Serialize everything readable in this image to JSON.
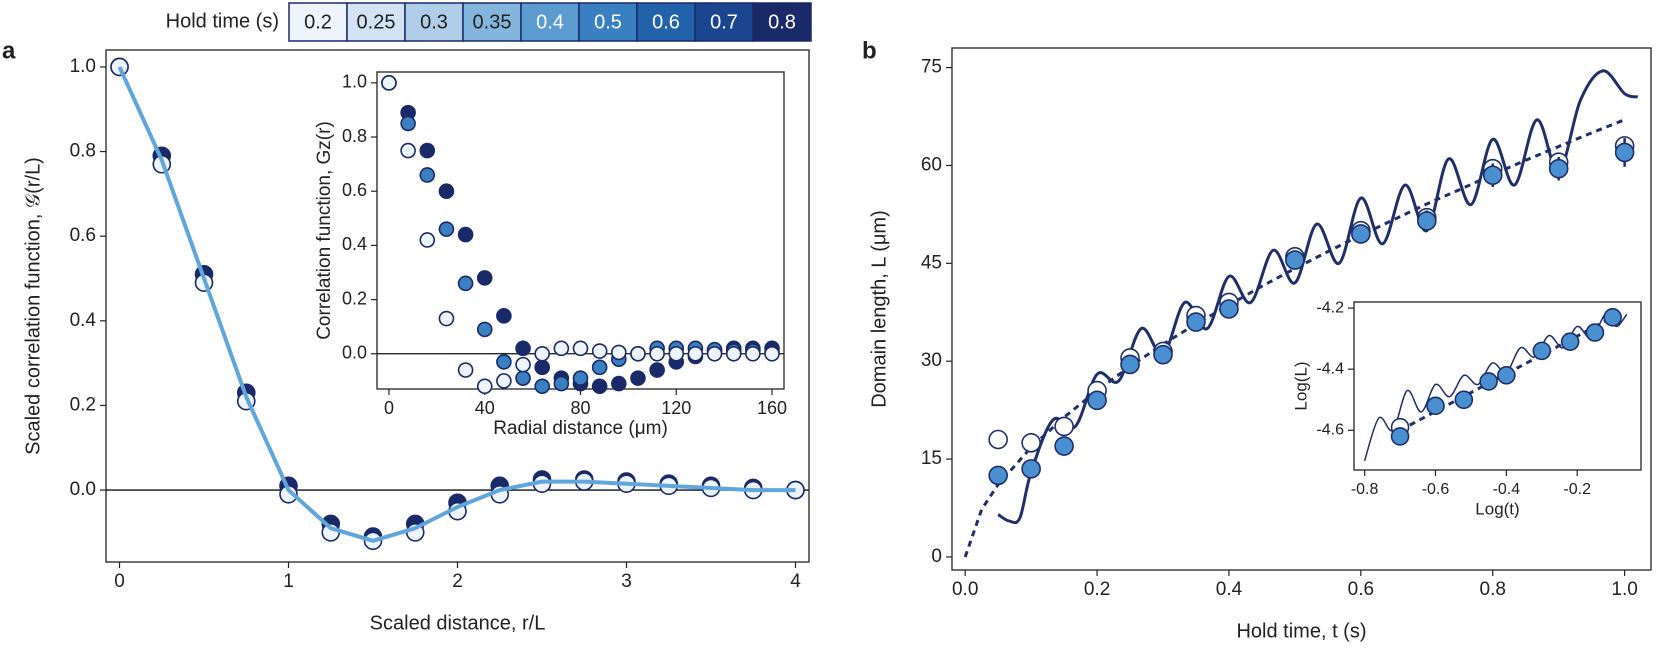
{
  "chart_data": [
    {
      "type": "scatter",
      "panel": "a",
      "xlabel": "Scaled distance, r/L",
      "ylabel": "Scaled correlation function, 𝒢(r/L)",
      "xlim": [
        -0.08,
        4.08
      ],
      "ylim": [
        -0.17,
        1.04
      ],
      "xticks": [
        0,
        1,
        2,
        3,
        4
      ],
      "yticks": [
        {
          "value": 0,
          "label": "0.0"
        },
        {
          "value": 0.2,
          "label": "0.2"
        },
        {
          "value": 0.4,
          "label": "0.4"
        },
        {
          "value": 0.6,
          "label": "0.6"
        },
        {
          "value": 0.8,
          "label": "0.8"
        },
        {
          "value": 1,
          "label": "1.0"
        }
      ],
      "zero_line": true,
      "colorbar": {
        "title": "Hold time (s)",
        "labels": [
          "0.2",
          "0.25",
          "0.3",
          "0.35",
          "0.4",
          "0.5",
          "0.6",
          "0.7",
          "0.8"
        ],
        "colors": [
          "#eef4fb",
          "#d3e3f3",
          "#b0cde8",
          "#84b5dc",
          "#5b9bd0",
          "#3a7fc2",
          "#2262ab",
          "#1c4590",
          "#1a2a68"
        ]
      },
      "x": [
        0,
        0.25,
        0.5,
        0.75,
        1.0,
        1.25,
        1.5,
        1.75,
        2.0,
        2.25,
        2.5,
        2.75,
        3.0,
        3.25,
        3.5,
        3.75,
        4.0
      ],
      "series": [
        {
          "color": "#1a2a68",
          "kind": "markers",
          "values": [
            1.0,
            0.79,
            0.51,
            0.23,
            0.01,
            -0.08,
            -0.11,
            -0.08,
            -0.03,
            0.01,
            0.025,
            0.025,
            0.02,
            0.015,
            0.01,
            0.005,
            0.0
          ]
        },
        {
          "color": "#eef4fb",
          "kind": "markers",
          "values": [
            1.0,
            0.77,
            0.49,
            0.21,
            -0.01,
            -0.1,
            -0.12,
            -0.1,
            -0.05,
            -0.01,
            0.015,
            0.02,
            0.015,
            0.01,
            0.005,
            0.0,
            0.0
          ]
        },
        {
          "color": "#5fa6dc",
          "kind": "line",
          "values": [
            1.0,
            0.78,
            0.5,
            0.22,
            0.0,
            -0.09,
            -0.12,
            -0.09,
            -0.04,
            0.0,
            0.02,
            0.02,
            0.015,
            0.01,
            0.005,
            0.0,
            0.0
          ]
        }
      ]
    },
    {
      "type": "scatter",
      "xlabel": "Radial distance (μm)",
      "ylabel": "Correlation function, Gz(r)",
      "xlim": [
        -5,
        165
      ],
      "ylim": [
        -0.13,
        1.04
      ],
      "xticks": [
        0,
        40,
        80,
        120,
        160
      ],
      "yticks": [
        {
          "value": 0,
          "label": "0.0"
        },
        {
          "value": 0.2,
          "label": "0.2"
        },
        {
          "value": 0.4,
          "label": "0.4"
        },
        {
          "value": 0.6,
          "label": "0.6"
        },
        {
          "value": 0.8,
          "label": "0.8"
        },
        {
          "value": 1,
          "label": "1.0"
        }
      ],
      "zero_line": true,
      "x": [
        0,
        8,
        16,
        24,
        32,
        40,
        48,
        56,
        64,
        72,
        80,
        88,
        96,
        104,
        112,
        120,
        128,
        136,
        144,
        152,
        160
      ],
      "series": [
        {
          "color": "#1a2a68",
          "kind": "markers",
          "values": [
            1,
            0.89,
            0.75,
            0.6,
            0.44,
            0.28,
            0.14,
            0.02,
            -0.05,
            -0.09,
            -0.11,
            -0.12,
            -0.11,
            -0.09,
            -0.06,
            -0.03,
            -0.01,
            0.01,
            0.02,
            0.02,
            0.02
          ]
        },
        {
          "color": "#3a7fc2",
          "kind": "markers",
          "values": [
            1,
            0.85,
            0.66,
            0.46,
            0.26,
            0.09,
            -0.03,
            -0.09,
            -0.12,
            -0.11,
            -0.09,
            -0.05,
            -0.02,
            0,
            0.02,
            0.02,
            0.02,
            0.015,
            0.01,
            0.01,
            0.005
          ]
        },
        {
          "color": "#eef4fb",
          "kind": "markers",
          "values": [
            1.0,
            0.75,
            0.42,
            0.13,
            -0.06,
            -0.12,
            -0.1,
            -0.04,
            0.0,
            0.02,
            0.02,
            0.01,
            0.005,
            0,
            0,
            0,
            0,
            0,
            0,
            0,
            0
          ]
        }
      ]
    },
    {
      "type": "line",
      "panel": "b",
      "xlabel": "Hold time, t (s)",
      "ylabel": "Domain length, L (μm)",
      "xlim": [
        -0.02,
        1.04
      ],
      "ylim": [
        -2,
        78
      ],
      "xticks": [
        {
          "value": 0,
          "label": "0.0"
        },
        {
          "value": 0.2,
          "label": "0.2"
        },
        {
          "value": 0.4,
          "label": "0.4"
        },
        {
          "value": 0.6,
          "label": "0.6"
        },
        {
          "value": 0.8,
          "label": "0.8"
        },
        {
          "value": 1,
          "label": "1.0"
        }
      ],
      "yticks": [
        0,
        15,
        30,
        45,
        60,
        75
      ],
      "series": [
        {
          "color": "#1f2f6a",
          "kind": "line",
          "smooth": true,
          "x": [
            0.05,
            0.067,
            0.083,
            0.1,
            0.133,
            0.167,
            0.2,
            0.233,
            0.267,
            0.3,
            0.333,
            0.367,
            0.4,
            0.433,
            0.467,
            0.5,
            0.533,
            0.567,
            0.6,
            0.633,
            0.667,
            0.7,
            0.733,
            0.767,
            0.8,
            0.833,
            0.867,
            0.9,
            0.933,
            0.967,
            1.0,
            1.02
          ],
          "values": [
            6.5,
            5.5,
            6,
            13,
            21,
            20,
            28,
            27,
            35,
            31,
            39,
            35,
            43,
            39,
            47,
            42,
            51,
            45,
            55,
            48,
            57,
            50,
            61,
            54,
            64,
            57,
            67,
            59,
            70,
            74.5,
            71,
            70.5
          ]
        },
        {
          "color": "#1f2f6a",
          "kind": "line",
          "dash": true,
          "x": [
            0,
            0.025,
            0.05,
            0.1,
            0.15,
            0.2,
            0.25,
            0.3,
            0.35,
            0.4,
            0.45,
            0.5,
            0.55,
            0.6,
            0.65,
            0.7,
            0.75,
            0.8,
            0.85,
            0.9,
            0.95,
            1.0
          ],
          "values": [
            0,
            7.3,
            11.1,
            16.8,
            21.4,
            25.5,
            29.2,
            32.6,
            35.7,
            38.6,
            41.5,
            44.2,
            46.8,
            49.3,
            51.7,
            54.1,
            56.3,
            58.6,
            60.8,
            62.9,
            65.0,
            67.0
          ]
        },
        {
          "color": "#ffffff",
          "edge": "#1f2f6a",
          "kind": "markers",
          "x": [
            0.05,
            0.1,
            0.15,
            0.2,
            0.25,
            0.3,
            0.35,
            0.4,
            0.5,
            0.6,
            0.7,
            0.8,
            0.9,
            1.0
          ],
          "values": [
            18,
            17.5,
            20,
            25.5,
            30.5,
            31.5,
            37,
            39,
            46,
            50,
            52,
            59.5,
            60.5,
            63
          ]
        },
        {
          "color": "#4a90d0",
          "edge": "#1f2f6a",
          "kind": "markers",
          "x": [
            0.05,
            0.1,
            0.15,
            0.2,
            0.25,
            0.3,
            0.35,
            0.4,
            0.5,
            0.6,
            0.7,
            0.8,
            0.9,
            1.0
          ],
          "values": [
            12.5,
            13.5,
            17,
            24,
            29.5,
            31,
            36,
            38,
            45.5,
            49.5,
            51.5,
            58.5,
            59.5,
            62
          ],
          "errors": [
            0.8,
            0.8,
            0.8,
            0.9,
            0.9,
            1,
            1,
            1.2,
            1.3,
            1.3,
            1.6,
            1.8,
            1.8,
            2.2
          ]
        }
      ]
    },
    {
      "type": "line",
      "xlabel": "Log(t)",
      "ylabel": "Log(L)",
      "xlim": [
        -0.83,
        -0.02
      ],
      "ylim": [
        -4.73,
        -4.18
      ],
      "xticks": [
        -0.8,
        -0.6,
        -0.4,
        -0.2
      ],
      "yticks": [
        -4.6,
        -4.4,
        -4.2
      ],
      "series": [
        {
          "color": "#1f2f6a",
          "kind": "line",
          "smooth": true,
          "thin": true,
          "x": [
            -0.8,
            -0.76,
            -0.72,
            -0.68,
            -0.64,
            -0.6,
            -0.56,
            -0.52,
            -0.48,
            -0.44,
            -0.4,
            -0.36,
            -0.32,
            -0.28,
            -0.24,
            -0.2,
            -0.16,
            -0.12,
            -0.09,
            -0.06
          ],
          "values": [
            -4.7,
            -4.56,
            -4.6,
            -4.47,
            -4.54,
            -4.45,
            -4.49,
            -4.42,
            -4.45,
            -4.38,
            -4.41,
            -4.33,
            -4.36,
            -4.29,
            -4.33,
            -4.26,
            -4.3,
            -4.22,
            -4.26,
            -4.22
          ]
        },
        {
          "color": "#1f2f6a",
          "kind": "line",
          "dash": true,
          "x": [
            -0.7,
            -0.1
          ],
          "values": [
            -4.6,
            -4.23
          ]
        },
        {
          "color": "#ffffff",
          "edge": "#1f2f6a",
          "kind": "markers",
          "x": [
            -0.7
          ],
          "values": [
            -4.59
          ]
        },
        {
          "color": "#4a90d0",
          "edge": "#1f2f6a",
          "kind": "markers",
          "x": [
            -0.7,
            -0.6,
            -0.52,
            -0.45,
            -0.4,
            -0.3,
            -0.22,
            -0.15,
            -0.1
          ],
          "values": [
            -4.62,
            -4.52,
            -4.5,
            -4.44,
            -4.42,
            -4.34,
            -4.31,
            -4.28,
            -4.23
          ]
        }
      ]
    }
  ]
}
